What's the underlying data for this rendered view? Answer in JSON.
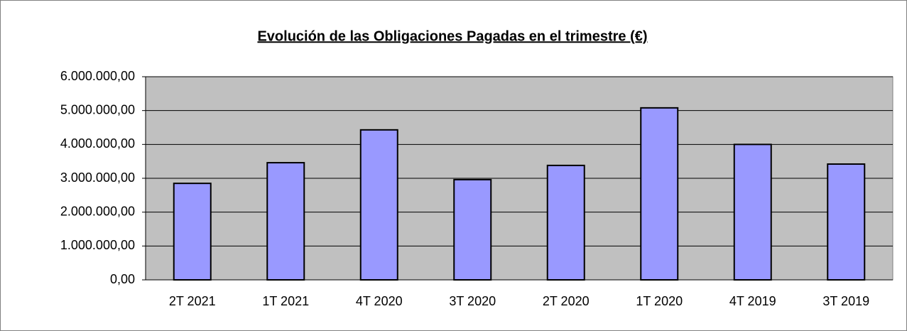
{
  "chart_data": {
    "type": "bar",
    "title": "Evolución de las Obligaciones Pagadas en el trimestre (€)",
    "categories": [
      "2T 2021",
      "1T 2021",
      "4T 2020",
      "3T 2020",
      "2T 2020",
      "1T 2020",
      "4T 2019",
      "3T 2019"
    ],
    "values": [
      2850000,
      3460000,
      4430000,
      2960000,
      3380000,
      5080000,
      4000000,
      3420000
    ],
    "color": "#9999ff",
    "ylim": [
      0,
      6000000
    ],
    "yticks": [
      {
        "value": 0,
        "label": "0,00"
      },
      {
        "value": 1000000,
        "label": "1.000.000,00"
      },
      {
        "value": 2000000,
        "label": "2.000.000,00"
      },
      {
        "value": 3000000,
        "label": "3.000.000,00"
      },
      {
        "value": 4000000,
        "label": "4.000.000,00"
      },
      {
        "value": 5000000,
        "label": "5.000.000,00"
      },
      {
        "value": 6000000,
        "label": "6.000.000,00"
      }
    ],
    "grid": true
  }
}
